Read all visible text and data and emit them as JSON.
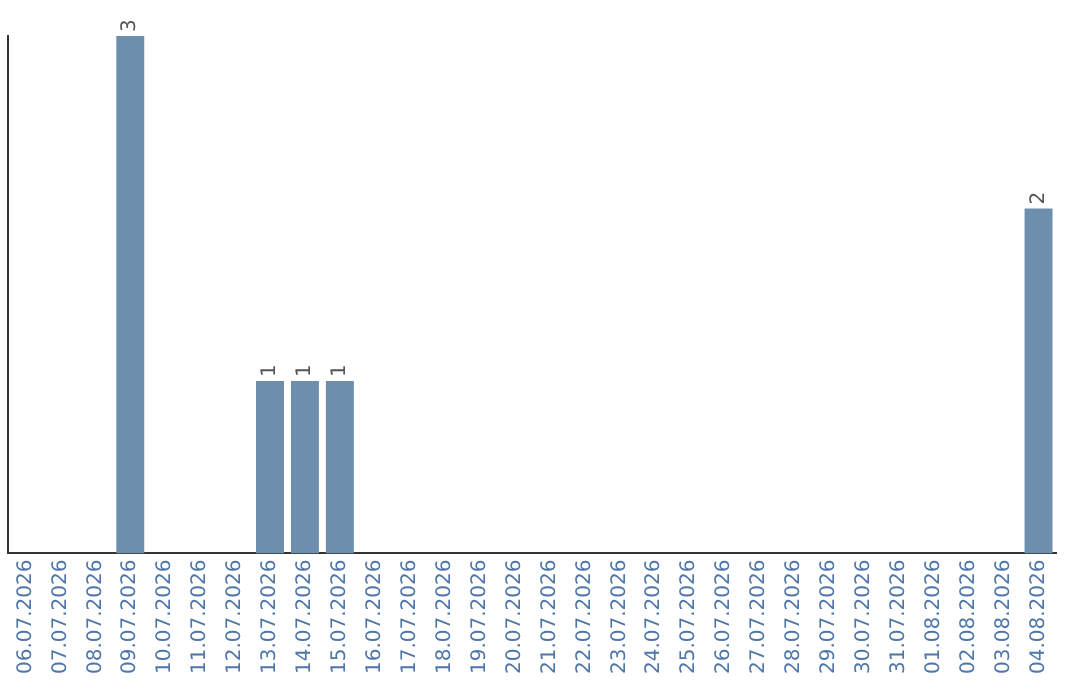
{
  "chart_data": {
    "type": "bar",
    "categories": [
      "06.07.2026",
      "07.07.2026",
      "08.07.2026",
      "09.07.2026",
      "10.07.2026",
      "11.07.2026",
      "12.07.2026",
      "13.07.2026",
      "14.07.2026",
      "15.07.2026",
      "16.07.2026",
      "17.07.2026",
      "18.07.2026",
      "19.07.2026",
      "20.07.2026",
      "21.07.2026",
      "22.07.2026",
      "23.07.2026",
      "24.07.2026",
      "25.07.2026",
      "26.07.2026",
      "27.07.2026",
      "28.07.2026",
      "29.07.2026",
      "30.07.2026",
      "31.07.2026",
      "01.08.2026",
      "02.08.2026",
      "03.08.2026",
      "04.08.2026"
    ],
    "values": [
      0,
      0,
      0,
      3,
      0,
      0,
      0,
      1,
      1,
      1,
      0,
      0,
      0,
      0,
      0,
      0,
      0,
      0,
      0,
      0,
      0,
      0,
      0,
      0,
      0,
      0,
      0,
      0,
      0,
      2
    ],
    "value_labels": [
      null,
      null,
      null,
      "3",
      null,
      null,
      null,
      "1",
      "1",
      "1",
      null,
      null,
      null,
      null,
      null,
      null,
      null,
      null,
      null,
      null,
      null,
      null,
      null,
      null,
      null,
      null,
      null,
      null,
      null,
      "2"
    ],
    "color": "#6d8fad",
    "grid": false,
    "legend": false,
    "tick_labels": "x"
  }
}
